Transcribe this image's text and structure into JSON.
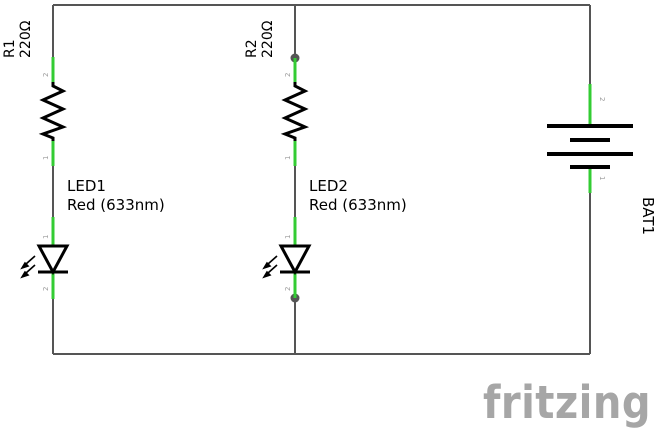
{
  "r1": {
    "name": "R1",
    "value": "220Ω",
    "pin_top": "2",
    "pin_bottom": "1"
  },
  "r2": {
    "name": "R2",
    "value": "220Ω",
    "pin_top": "2",
    "pin_bottom": "1"
  },
  "led1": {
    "name": "LED1",
    "value": "Red (633nm)",
    "pin_top": "1",
    "pin_bottom": "2"
  },
  "led2": {
    "name": "LED2",
    "value": "Red (633nm)",
    "pin_top": "1",
    "pin_bottom": "2"
  },
  "bat1": {
    "name": "BAT1",
    "pin_top": "2",
    "pin_bottom": "1"
  },
  "branding": {
    "logo_text": "fritzing"
  },
  "colors": {
    "wire": "#555555",
    "connector": "#33cc33",
    "symbol": "#000000",
    "logo": "#a6a6a6"
  }
}
